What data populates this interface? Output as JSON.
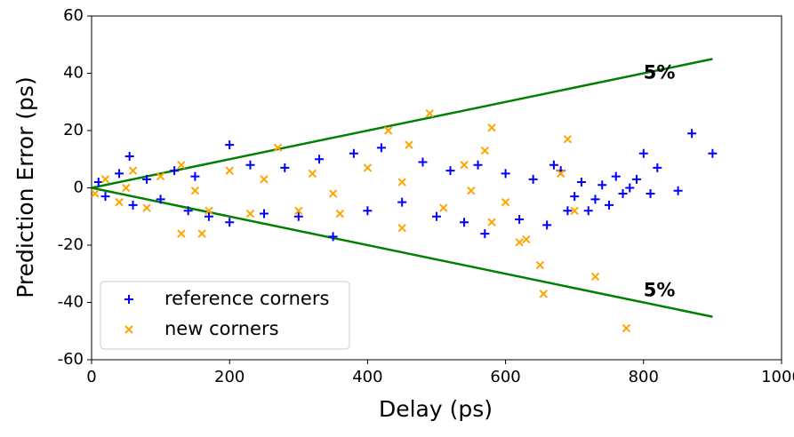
{
  "chart_data": {
    "type": "scatter",
    "x_label": "Delay (ps)",
    "y_label": "Prediction Error (ps)",
    "xlim": [
      0,
      1000
    ],
    "ylim": [
      -60,
      60
    ],
    "xticks": [
      0,
      200,
      400,
      600,
      800,
      1000
    ],
    "yticks": [
      -60,
      -40,
      -20,
      0,
      20,
      40,
      60
    ],
    "legend": "lower left",
    "series": [
      {
        "name": "reference corners",
        "color": "#0000ff",
        "marker": "+",
        "x": [
          10,
          20,
          40,
          55,
          60,
          80,
          100,
          120,
          140,
          150,
          170,
          200,
          200,
          230,
          250,
          280,
          300,
          330,
          350,
          380,
          400,
          420,
          450,
          480,
          500,
          520,
          540,
          560,
          570,
          600,
          620,
          640,
          660,
          680,
          700,
          710,
          720,
          730,
          740,
          750,
          760,
          770,
          780,
          790,
          800,
          810,
          850,
          870,
          900,
          820,
          690,
          670
        ],
        "y": [
          2,
          -3,
          5,
          11,
          -6,
          3,
          -4,
          6,
          -8,
          4,
          -10,
          15,
          -12,
          8,
          -9,
          7,
          -10,
          10,
          -17,
          12,
          -8,
          14,
          -5,
          9,
          -10,
          6,
          -12,
          8,
          -16,
          5,
          -11,
          3,
          -13,
          6,
          -3,
          2,
          -8,
          -4,
          1,
          -6,
          4,
          -2,
          0,
          3,
          12,
          -2,
          -1,
          19,
          12,
          7,
          -8,
          8
        ]
      },
      {
        "name": "new corners",
        "color": "#ffa500",
        "marker": "x",
        "x": [
          5,
          20,
          40,
          60,
          80,
          100,
          130,
          160,
          130,
          170,
          200,
          230,
          270,
          300,
          320,
          360,
          400,
          430,
          450,
          460,
          490,
          510,
          540,
          570,
          580,
          580,
          600,
          620,
          650,
          655,
          630,
          690,
          700,
          730,
          775,
          680,
          250,
          350,
          450,
          550,
          150,
          50
        ],
        "y": [
          -2,
          3,
          -5,
          6,
          -7,
          4,
          -16,
          -16,
          8,
          -8,
          6,
          -9,
          14,
          -8,
          5,
          -9,
          7,
          20,
          -14,
          15,
          26,
          -7,
          8,
          13,
          21,
          -12,
          -5,
          -19,
          -27,
          -37,
          -18,
          17,
          -8,
          -31,
          -49,
          5,
          3,
          -2,
          2,
          -1,
          -1,
          0
        ]
      }
    ],
    "lines": [
      {
        "color": "#008000",
        "x": [
          0,
          900
        ],
        "y": [
          0,
          45
        ]
      },
      {
        "color": "#008000",
        "x": [
          0,
          900
        ],
        "y": [
          0,
          -45
        ]
      }
    ],
    "annotations": [
      {
        "text": "5%",
        "x": 800,
        "y": 40
      },
      {
        "text": "5%",
        "x": 800,
        "y": -36
      }
    ]
  }
}
